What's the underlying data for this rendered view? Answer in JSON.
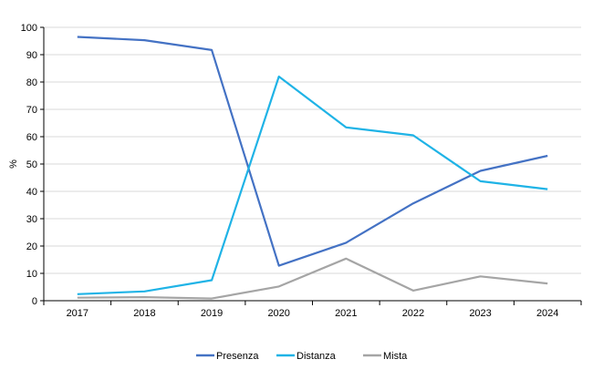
{
  "chart_data": {
    "type": "line",
    "title": "",
    "xlabel": "",
    "ylabel": "%",
    "x": [
      "2017",
      "2018",
      "2019",
      "2020",
      "2021",
      "2022",
      "2023",
      "2024"
    ],
    "ylim": [
      0,
      100
    ],
    "yticks": [
      0,
      10,
      20,
      30,
      40,
      50,
      60,
      70,
      80,
      90,
      100
    ],
    "grid": true,
    "legend_position": "bottom",
    "series": [
      {
        "name": "Presenza",
        "color": "#4472C4",
        "values": [
          96.5,
          95.3,
          91.7,
          12.8,
          21.2,
          35.6,
          47.5,
          53.0
        ]
      },
      {
        "name": "Distanza",
        "color": "#1FB3E6",
        "values": [
          2.4,
          3.4,
          7.5,
          82.0,
          63.4,
          60.5,
          43.7,
          40.8
        ]
      },
      {
        "name": "Mista",
        "color": "#A5A5A5",
        "values": [
          1.1,
          1.3,
          0.8,
          5.2,
          15.4,
          3.7,
          8.9,
          6.3
        ]
      }
    ]
  }
}
